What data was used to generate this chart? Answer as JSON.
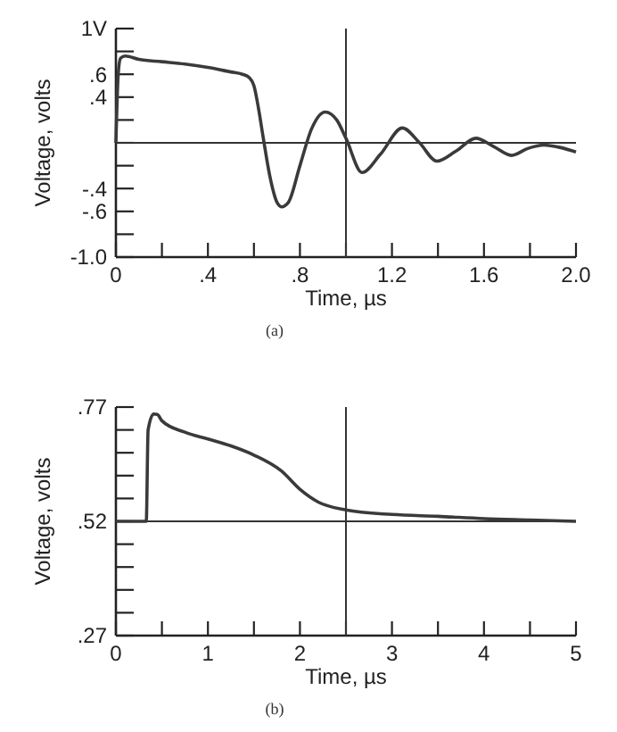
{
  "chart_data": [
    {
      "type": "line",
      "xlabel": "Time, µs",
      "ylabel": "Voltage, volts",
      "annotations": [
        "(a)"
      ],
      "color": "#3a3a3a",
      "x": [
        0,
        0.01,
        0.02,
        0.04,
        0.1,
        0.2,
        0.3,
        0.4,
        0.5,
        0.55,
        0.58,
        0.6,
        0.62,
        0.64,
        0.67,
        0.7,
        0.72,
        0.75,
        0.8,
        0.85,
        0.91,
        0.96,
        1.0,
        1.07,
        1.15,
        1.245,
        1.32,
        1.395,
        1.48,
        1.565,
        1.64,
        1.72,
        1.79,
        1.86,
        1.93,
        2.0
      ],
      "values": [
        0.0,
        0.6,
        0.74,
        0.76,
        0.73,
        0.71,
        0.69,
        0.66,
        0.62,
        0.6,
        0.57,
        0.5,
        0.3,
        0.05,
        -0.3,
        -0.52,
        -0.56,
        -0.52,
        -0.2,
        0.12,
        0.27,
        0.2,
        0.04,
        -0.26,
        -0.1,
        0.13,
        0.0,
        -0.16,
        -0.07,
        0.04,
        -0.03,
        -0.11,
        -0.05,
        -0.02,
        -0.04,
        -0.08
      ],
      "xlim": [
        0,
        2.0
      ],
      "ylim": [
        -1.0,
        1.0
      ],
      "xticks": [
        0,
        {
          "value": 0.2,
          "label": null
        },
        {
          "value": 0.4,
          "label": ".4"
        },
        {
          "value": 0.6,
          "label": null
        },
        {
          "value": 0.8,
          "label": ".8"
        },
        {
          "value": 1.0,
          "label": null
        },
        1.2,
        {
          "value": 1.4,
          "label": null
        },
        1.6,
        {
          "value": 1.8,
          "label": null
        },
        {
          "value": 2.0,
          "label": "2.0"
        }
      ],
      "yticks": [
        {
          "value": -1.0,
          "label": "-1.0"
        },
        {
          "value": -0.8,
          "label": null
        },
        {
          "value": -0.6,
          "label": "-.6"
        },
        {
          "value": -0.4,
          "label": "-.4"
        },
        {
          "value": -0.2,
          "label": null
        },
        {
          "value": 0,
          "label": null
        },
        {
          "value": 0.2,
          "label": null
        },
        {
          "value": 0.4,
          "label": ".4"
        },
        {
          "value": 0.6,
          "label": ".6"
        },
        {
          "value": 0.8,
          "label": null
        },
        {
          "value": 1.0,
          "label": "1V"
        }
      ],
      "ref_lines": [
        {
          "axis": "y",
          "value": 0
        },
        {
          "axis": "x",
          "value": 1.0
        }
      ]
    },
    {
      "type": "line",
      "xlabel": "Time, µs",
      "ylabel": "Voltage, volts",
      "annotations": [
        "(b)"
      ],
      "color": "#3a3a3a",
      "x": [
        0,
        0.33,
        0.35,
        0.41,
        0.45,
        0.5,
        0.75,
        1.0,
        1.25,
        1.5,
        1.8,
        2.0,
        2.2,
        2.5,
        3.0,
        3.5,
        4.0,
        4.5,
        5.0
      ],
      "values": [
        0.52,
        0.52,
        0.72,
        0.755,
        0.754,
        0.74,
        0.715,
        0.7,
        0.685,
        0.665,
        0.63,
        0.59,
        0.562,
        0.545,
        0.535,
        0.531,
        0.526,
        0.523,
        0.52
      ],
      "xlim": [
        0,
        5
      ],
      "ylim": [
        0.27,
        0.77
      ],
      "xticks": [
        0,
        {
          "value": 0.5,
          "label": null
        },
        1,
        {
          "value": 1.5,
          "label": null
        },
        2,
        {
          "value": 2.5,
          "label": null
        },
        3,
        {
          "value": 3.5,
          "label": null
        },
        4,
        {
          "value": 4.5,
          "label": null
        },
        5
      ],
      "yticks": [
        {
          "value": 0.27,
          "label": ".27"
        },
        {
          "value": 0.32,
          "label": null
        },
        {
          "value": 0.37,
          "label": null
        },
        {
          "value": 0.42,
          "label": null
        },
        {
          "value": 0.47,
          "label": null
        },
        {
          "value": 0.52,
          "label": ".52"
        },
        {
          "value": 0.57,
          "label": null
        },
        {
          "value": 0.62,
          "label": null
        },
        {
          "value": 0.67,
          "label": null
        },
        {
          "value": 0.72,
          "label": null
        },
        {
          "value": 0.77,
          "label": ".77"
        }
      ],
      "ref_lines": [
        {
          "axis": "y",
          "value": 0.52
        },
        {
          "axis": "x",
          "value": 2.5
        }
      ]
    }
  ]
}
